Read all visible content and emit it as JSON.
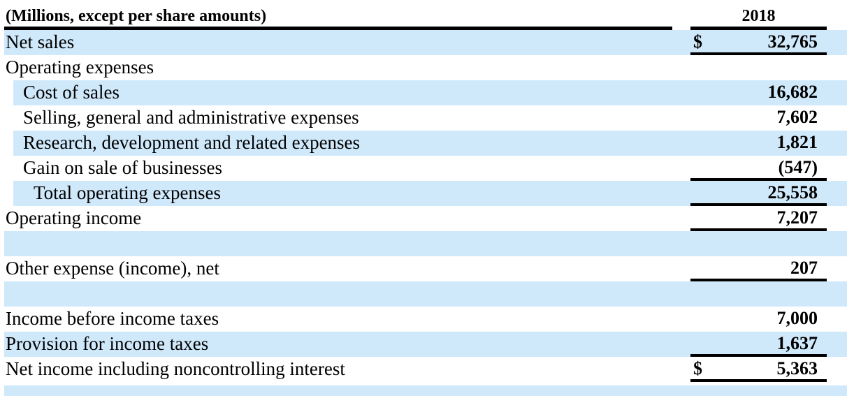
{
  "colors": {
    "stripe": "#cfe9fb",
    "rule": "#000000",
    "text": "#000000",
    "background": "#ffffff"
  },
  "table": {
    "header": {
      "label": "(Millions, except per share amounts)",
      "year": "2018"
    },
    "rows": [
      {
        "label": "Net sales",
        "currency": "$",
        "amount": "32,765",
        "indent": 0,
        "shaded": true,
        "underline": true
      },
      {
        "label": "Operating expenses",
        "currency": "",
        "amount": "",
        "indent": 0,
        "shaded": false,
        "underline": false
      },
      {
        "label": "Cost of sales",
        "currency": "",
        "amount": "16,682",
        "indent": 1,
        "shaded": true,
        "underline": false
      },
      {
        "label": "Selling, general and administrative expenses",
        "currency": "",
        "amount": "7,602",
        "indent": 1,
        "shaded": false,
        "underline": false
      },
      {
        "label": "Research, development and related expenses",
        "currency": "",
        "amount": "1,821",
        "indent": 1,
        "shaded": true,
        "underline": false
      },
      {
        "label": "Gain on sale of businesses",
        "currency": "",
        "amount": "(547)",
        "indent": 1,
        "shaded": false,
        "underline": true
      },
      {
        "label": "Total operating expenses",
        "currency": "",
        "amount": "25,558",
        "indent": 2,
        "shaded": true,
        "underline": true
      },
      {
        "label": "Operating income",
        "currency": "",
        "amount": "7,207",
        "indent": 0,
        "shaded": false,
        "underline": true
      },
      {
        "label": "",
        "currency": "",
        "amount": "",
        "indent": 0,
        "shaded": true,
        "underline": false
      },
      {
        "label": "Other expense (income), net",
        "currency": "",
        "amount": "207",
        "indent": 0,
        "shaded": false,
        "underline": true
      },
      {
        "label": "",
        "currency": "",
        "amount": "",
        "indent": 0,
        "shaded": true,
        "underline": false
      },
      {
        "label": "Income before income taxes",
        "currency": "",
        "amount": "7,000",
        "indent": 0,
        "shaded": false,
        "underline": false
      },
      {
        "label": "Provision for income taxes",
        "currency": "",
        "amount": "1,637",
        "indent": 0,
        "shaded": true,
        "underline": true
      },
      {
        "label": "Net income including noncontrolling interest",
        "currency": "$",
        "amount": "5,363",
        "indent": 0,
        "shaded": false,
        "underline": true
      },
      {
        "label": "",
        "currency": "",
        "amount": "",
        "indent": 0,
        "shaded": true,
        "underline": false
      }
    ]
  }
}
